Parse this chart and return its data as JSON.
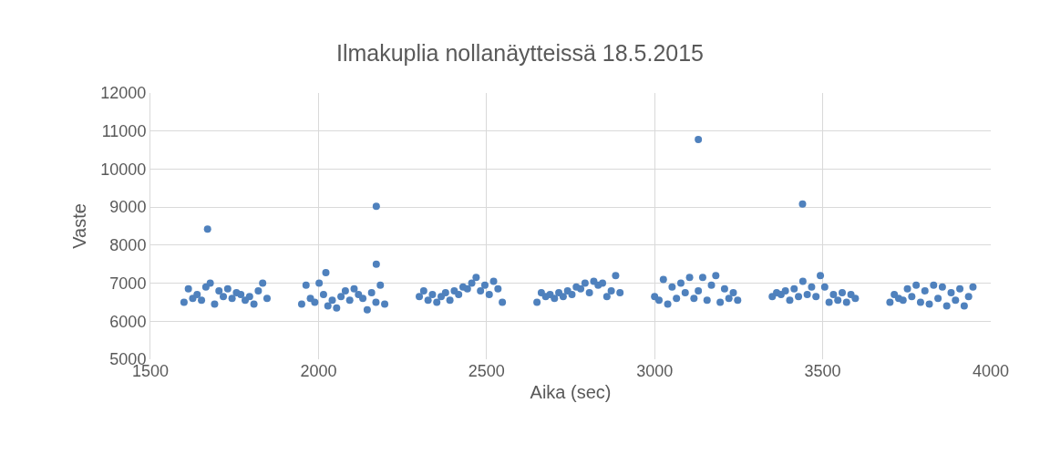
{
  "chart_data": {
    "type": "scatter",
    "title": "Ilmakuplia nollanäytteissä 18.5.2015",
    "xlabel": "Aika (sec)",
    "ylabel": "Vaste",
    "x": [
      1600,
      1613,
      1626,
      1639,
      1652,
      1665,
      1678,
      1691,
      1704,
      1717,
      1730,
      1743,
      1756,
      1769,
      1782,
      1795,
      1808,
      1821,
      1834,
      1847,
      1950,
      1963,
      1976,
      1989,
      2002,
      2015,
      2028,
      2041,
      2054,
      2067,
      2080,
      2093,
      2106,
      2119,
      2132,
      2145,
      2158,
      2171,
      2184,
      2197,
      2300,
      2313,
      2326,
      2339,
      2352,
      2365,
      2378,
      2391,
      2404,
      2417,
      2430,
      2443,
      2456,
      2469,
      2482,
      2495,
      2508,
      2521,
      2534,
      2547,
      2650,
      2663,
      2676,
      2689,
      2702,
      2715,
      2728,
      2741,
      2754,
      2767,
      2780,
      2793,
      2806,
      2819,
      2832,
      2845,
      2858,
      2871,
      2884,
      2897,
      3000,
      3013,
      3026,
      3039,
      3052,
      3065,
      3078,
      3091,
      3104,
      3117,
      3130,
      3143,
      3156,
      3169,
      3182,
      3195,
      3208,
      3221,
      3234,
      3247,
      3350,
      3363,
      3376,
      3389,
      3402,
      3415,
      3428,
      3441,
      3454,
      3467,
      3480,
      3493,
      3506,
      3519,
      3532,
      3545,
      3558,
      3571,
      3584,
      3597,
      3700,
      3713,
      3726,
      3739,
      3752,
      3765,
      3778,
      3791,
      3804,
      3817,
      3830,
      3843,
      3856,
      3869,
      3882,
      3895,
      3908,
      3921,
      3934,
      3947,
      1670,
      2022,
      2172,
      2172,
      3130,
      3440
    ],
    "values": [
      6500,
      6850,
      6600,
      6700,
      6550,
      6900,
      7000,
      6450,
      6800,
      6650,
      6850,
      6600,
      6750,
      6700,
      6550,
      6650,
      6450,
      6800,
      7000,
      6600,
      6450,
      6950,
      6600,
      6500,
      7000,
      6700,
      6400,
      6550,
      6350,
      6650,
      6800,
      6550,
      6850,
      6700,
      6600,
      6300,
      6750,
      6500,
      6950,
      6450,
      6650,
      6800,
      6550,
      6700,
      6500,
      6650,
      6750,
      6550,
      6800,
      6700,
      6900,
      6850,
      7000,
      7150,
      6800,
      6950,
      6700,
      7050,
      6850,
      6500,
      6500,
      6750,
      6650,
      6700,
      6600,
      6750,
      6650,
      6800,
      6700,
      6900,
      6850,
      7000,
      6750,
      7050,
      6950,
      7000,
      6650,
      6800,
      7200,
      6750,
      6650,
      6550,
      7100,
      6450,
      6900,
      6600,
      7000,
      6750,
      7150,
      6600,
      6800,
      7150,
      6550,
      6950,
      7200,
      6500,
      6850,
      6600,
      6750,
      6550,
      6650,
      6750,
      6700,
      6800,
      6550,
      6850,
      6650,
      7050,
      6700,
      6900,
      6650,
      7200,
      6900,
      6500,
      6700,
      6550,
      6750,
      6500,
      6700,
      6600,
      6500,
      6700,
      6600,
      6550,
      6850,
      6650,
      6950,
      6500,
      6800,
      6450,
      6950,
      6600,
      6900,
      6400,
      6750,
      6550,
      6850,
      6400,
      6650,
      6900,
      8420,
      7280,
      9020,
      7500,
      10780,
      9080
    ],
    "color": "#4f81bd",
    "marker": "circle",
    "xlim": [
      1500,
      4000
    ],
    "xticks": [
      1500,
      2000,
      2500,
      3000,
      3500,
      4000
    ],
    "ylim": [
      5000,
      12000
    ],
    "yticks": [
      5000,
      6000,
      7000,
      8000,
      9000,
      10000,
      11000,
      12000
    ],
    "grid": true,
    "legend": false
  }
}
